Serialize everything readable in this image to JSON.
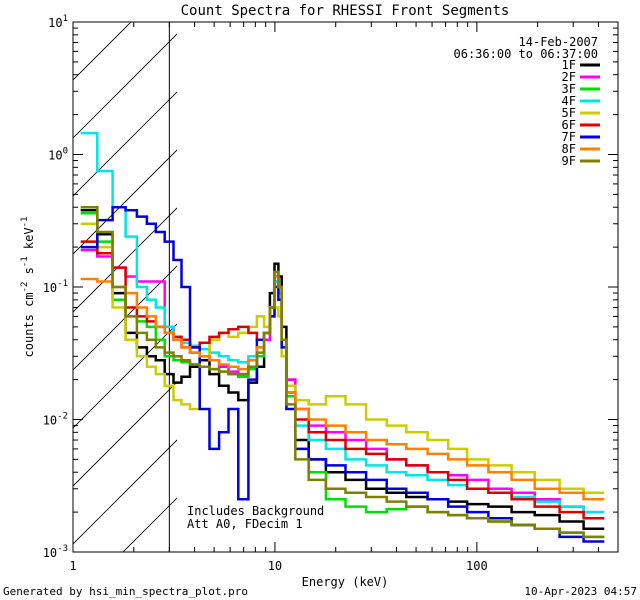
{
  "chart_data": {
    "type": "line",
    "title": "Count Spectra for RHESSI Front Segments",
    "xlabel": "Energy (keV)",
    "ylabel_parts": [
      "counts cm",
      "-2",
      " s",
      "-1",
      " keV",
      "-1"
    ],
    "x_scale": "log",
    "y_scale": "log",
    "xlim": [
      1,
      500
    ],
    "ylim": [
      0.001,
      10
    ],
    "x_ticklabels": [
      {
        "value": 1,
        "label": "1"
      },
      {
        "value": 10,
        "label": "10"
      },
      {
        "value": 100,
        "label": "100"
      }
    ],
    "y_ticklabels": [
      {
        "value": 10,
        "base": "10",
        "exp": "1"
      },
      {
        "value": 1,
        "base": "10",
        "exp": "0"
      },
      {
        "value": 0.1,
        "base": "10",
        "exp": "-1"
      },
      {
        "value": 0.01,
        "base": "10",
        "exp": "-2"
      },
      {
        "value": 0.001,
        "base": "10",
        "exp": "-3"
      }
    ],
    "shaded_region": {
      "from_kev": 1,
      "to_kev": 3,
      "style": "diagonal hatch"
    },
    "date": "14-Feb-2007",
    "time_range": "06:36:00 to 06:37:00",
    "notes": [
      "Includes Background",
      "Att A0, FDecim 1"
    ],
    "footer_left": "Generated by hsi_min_spectra_plot.pro",
    "footer_right": "10-Apr-2023 04:57",
    "series": [
      {
        "name": "1F",
        "color": "#000000",
        "x": [
          1.2,
          1.45,
          1.7,
          1.95,
          2.2,
          2.45,
          2.7,
          3.0,
          3.3,
          3.6,
          4.0,
          4.5,
          5.0,
          5.6,
          6.2,
          7.0,
          7.8,
          8.5,
          9.2,
          9.7,
          10.2,
          10.6,
          11.0,
          11.8,
          13.5,
          16,
          20,
          25,
          32,
          40,
          50,
          65,
          80,
          100,
          130,
          170,
          220,
          300,
          380
        ],
        "values": [
          0.38,
          0.25,
          0.09,
          0.045,
          0.035,
          0.03,
          0.028,
          0.022,
          0.019,
          0.021,
          0.025,
          0.028,
          0.022,
          0.018,
          0.016,
          0.014,
          0.019,
          0.025,
          0.045,
          0.09,
          0.15,
          0.12,
          0.05,
          0.02,
          0.007,
          0.005,
          0.004,
          0.0035,
          0.003,
          0.0028,
          0.0026,
          0.0025,
          0.0024,
          0.0023,
          0.0022,
          0.002,
          0.0019,
          0.0017,
          0.0015
        ]
      },
      {
        "name": "2F",
        "color": "#ff00ff",
        "x": [
          1.2,
          1.45,
          1.7,
          1.95,
          2.2,
          2.45,
          2.7,
          3.0,
          3.3,
          3.6,
          4.0,
          4.5,
          5.0,
          5.6,
          6.2,
          7.0,
          7.8,
          8.5,
          9.2,
          9.7,
          10.2,
          10.6,
          11.0,
          11.8,
          13.5,
          16,
          20,
          25,
          32,
          40,
          50,
          65,
          80,
          100,
          130,
          170,
          220,
          300,
          380
        ],
        "values": [
          0.19,
          0.17,
          0.14,
          0.12,
          0.11,
          0.11,
          0.11,
          0.05,
          0.04,
          0.035,
          0.032,
          0.03,
          0.028,
          0.025,
          0.023,
          0.022,
          0.025,
          0.03,
          0.04,
          0.07,
          0.11,
          0.09,
          0.04,
          0.02,
          0.012,
          0.009,
          0.008,
          0.007,
          0.006,
          0.005,
          0.0045,
          0.004,
          0.0038,
          0.0035,
          0.003,
          0.0028,
          0.0025,
          0.0022,
          0.002
        ]
      },
      {
        "name": "3F",
        "color": "#00dd00",
        "x": [
          1.2,
          1.45,
          1.7,
          1.95,
          2.2,
          2.45,
          2.7,
          3.0,
          3.3,
          3.6,
          4.0,
          4.5,
          5.0,
          5.6,
          6.2,
          7.0,
          7.8,
          8.5,
          9.2,
          9.7,
          10.2,
          10.6,
          11.0,
          11.8,
          13.5,
          16,
          20,
          25,
          32,
          40,
          50,
          65,
          80,
          100,
          130,
          170,
          220,
          300,
          380
        ],
        "values": [
          0.36,
          0.22,
          0.08,
          0.06,
          0.055,
          0.05,
          0.04,
          0.03,
          0.028,
          0.027,
          0.026,
          0.025,
          0.024,
          0.023,
          0.022,
          0.021,
          0.024,
          0.03,
          0.045,
          0.07,
          0.12,
          0.1,
          0.04,
          0.015,
          0.006,
          0.004,
          0.0025,
          0.0022,
          0.002,
          0.0021,
          0.0022,
          0.002,
          0.0019,
          0.0018,
          0.0017,
          0.0016,
          0.0015,
          0.0014,
          0.0013
        ]
      },
      {
        "name": "4F",
        "color": "#00e5e5",
        "x": [
          1.2,
          1.45,
          1.7,
          1.95,
          2.2,
          2.45,
          2.7,
          3.0,
          3.3,
          3.6,
          4.0,
          4.5,
          5.0,
          5.6,
          6.2,
          7.0,
          7.8,
          8.5,
          9.2,
          9.7,
          10.2,
          10.6,
          11.0,
          11.8,
          13.5,
          16,
          20,
          25,
          32,
          40,
          50,
          65,
          80,
          100,
          130,
          170,
          220,
          300,
          380
        ],
        "values": [
          1.45,
          0.75,
          0.4,
          0.24,
          0.1,
          0.08,
          0.07,
          0.05,
          0.042,
          0.038,
          0.036,
          0.034,
          0.032,
          0.03,
          0.028,
          0.027,
          0.03,
          0.035,
          0.045,
          0.07,
          0.11,
          0.09,
          0.04,
          0.018,
          0.009,
          0.007,
          0.006,
          0.005,
          0.0045,
          0.004,
          0.0038,
          0.0035,
          0.0032,
          0.003,
          0.0028,
          0.0026,
          0.0024,
          0.0022,
          0.002
        ]
      },
      {
        "name": "5F",
        "color": "#cccc00",
        "x": [
          1.2,
          1.45,
          1.7,
          1.95,
          2.2,
          2.45,
          2.7,
          3.0,
          3.3,
          3.6,
          4.0,
          4.5,
          5.0,
          5.6,
          6.2,
          7.0,
          7.8,
          8.5,
          9.2,
          9.7,
          10.2,
          10.6,
          11.0,
          11.8,
          13.5,
          16,
          20,
          25,
          32,
          40,
          50,
          65,
          80,
          100,
          130,
          170,
          220,
          300,
          380
        ],
        "values": [
          0.3,
          0.2,
          0.07,
          0.04,
          0.03,
          0.025,
          0.022,
          0.018,
          0.014,
          0.013,
          0.012,
          0.03,
          0.04,
          0.045,
          0.042,
          0.045,
          0.05,
          0.06,
          0.05,
          0.06,
          0.07,
          0.06,
          0.03,
          0.018,
          0.014,
          0.013,
          0.015,
          0.013,
          0.01,
          0.009,
          0.008,
          0.007,
          0.006,
          0.005,
          0.0045,
          0.004,
          0.0035,
          0.003,
          0.0028
        ]
      },
      {
        "name": "6F",
        "color": "#dd0000",
        "x": [
          1.2,
          1.45,
          1.7,
          1.95,
          2.2,
          2.45,
          2.7,
          3.0,
          3.3,
          3.6,
          4.0,
          4.5,
          5.0,
          5.6,
          6.2,
          7.0,
          7.8,
          8.5,
          9.2,
          9.7,
          10.2,
          10.6,
          11.0,
          11.8,
          13.5,
          16,
          20,
          25,
          32,
          40,
          50,
          65,
          80,
          100,
          130,
          170,
          220,
          300,
          380
        ],
        "values": [
          0.22,
          0.18,
          0.14,
          0.07,
          0.06,
          0.055,
          0.05,
          0.045,
          0.042,
          0.04,
          0.035,
          0.038,
          0.042,
          0.045,
          0.048,
          0.05,
          0.045,
          0.04,
          0.045,
          0.07,
          0.12,
          0.1,
          0.04,
          0.016,
          0.01,
          0.008,
          0.007,
          0.006,
          0.0055,
          0.005,
          0.0045,
          0.004,
          0.0035,
          0.003,
          0.0028,
          0.0025,
          0.0022,
          0.002,
          0.0018
        ]
      },
      {
        "name": "7F",
        "color": "#0000dd",
        "x": [
          1.2,
          1.45,
          1.7,
          1.95,
          2.2,
          2.45,
          2.7,
          3.0,
          3.3,
          3.6,
          4.0,
          4.5,
          5.0,
          5.6,
          6.2,
          7.0,
          7.8,
          8.5,
          9.2,
          9.7,
          10.2,
          10.6,
          11.0,
          11.8,
          13.5,
          16,
          20,
          25,
          32,
          40,
          50,
          65,
          80,
          100,
          130,
          170,
          220,
          300,
          380
        ],
        "values": [
          0.2,
          0.32,
          0.4,
          0.38,
          0.34,
          0.3,
          0.26,
          0.22,
          0.16,
          0.1,
          0.035,
          0.012,
          0.006,
          0.008,
          0.012,
          0.0025,
          0.02,
          0.04,
          0.045,
          0.06,
          0.1,
          0.08,
          0.035,
          0.012,
          0.006,
          0.005,
          0.0045,
          0.004,
          0.0035,
          0.003,
          0.0028,
          0.0025,
          0.0022,
          0.002,
          0.0018,
          0.0016,
          0.0015,
          0.0013,
          0.0012
        ]
      },
      {
        "name": "8F",
        "color": "#ff8000",
        "x": [
          1.2,
          1.45,
          1.7,
          1.95,
          2.2,
          2.45,
          2.7,
          3.0,
          3.3,
          3.6,
          4.0,
          4.5,
          5.0,
          5.6,
          6.2,
          7.0,
          7.8,
          8.5,
          9.2,
          9.7,
          10.2,
          10.6,
          11.0,
          11.8,
          13.5,
          16,
          20,
          25,
          32,
          40,
          50,
          65,
          80,
          100,
          130,
          170,
          220,
          300,
          380
        ],
        "values": [
          0.115,
          0.11,
          0.1,
          0.09,
          0.07,
          0.06,
          0.05,
          0.045,
          0.04,
          0.035,
          0.032,
          0.03,
          0.028,
          0.026,
          0.025,
          0.024,
          0.028,
          0.035,
          0.045,
          0.07,
          0.12,
          0.1,
          0.04,
          0.016,
          0.012,
          0.01,
          0.009,
          0.008,
          0.007,
          0.0065,
          0.006,
          0.0055,
          0.005,
          0.0045,
          0.004,
          0.0035,
          0.003,
          0.0028,
          0.0025
        ]
      },
      {
        "name": "9F",
        "color": "#808000",
        "x": [
          1.2,
          1.45,
          1.7,
          1.95,
          2.2,
          2.45,
          2.7,
          3.0,
          3.3,
          3.6,
          4.0,
          4.5,
          5.0,
          5.6,
          6.2,
          7.0,
          7.8,
          8.5,
          9.2,
          9.7,
          10.2,
          10.6,
          11.0,
          11.8,
          13.5,
          16,
          20,
          25,
          32,
          40,
          50,
          65,
          80,
          100,
          130,
          170,
          220,
          300,
          380
        ],
        "values": [
          0.4,
          0.26,
          0.1,
          0.06,
          0.045,
          0.04,
          0.035,
          0.032,
          0.03,
          0.028,
          0.026,
          0.025,
          0.024,
          0.023,
          0.022,
          0.022,
          0.025,
          0.032,
          0.045,
          0.07,
          0.13,
          0.1,
          0.04,
          0.013,
          0.005,
          0.0035,
          0.003,
          0.0028,
          0.0026,
          0.0024,
          0.0022,
          0.002,
          0.0019,
          0.0018,
          0.0017,
          0.0016,
          0.0015,
          0.0014,
          0.0013
        ]
      }
    ]
  }
}
